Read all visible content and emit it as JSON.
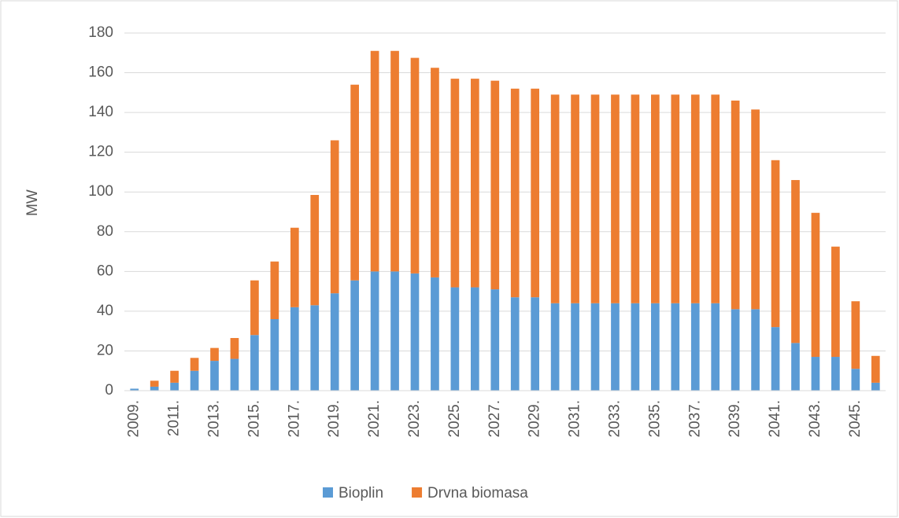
{
  "chart_data": {
    "type": "stacked_bar",
    "y_label": "MW",
    "categories": [
      "2009.",
      null,
      "2011.",
      null,
      "2013.",
      null,
      "2015.",
      null,
      "2017.",
      null,
      "2019.",
      null,
      "2021.",
      null,
      "2023.",
      null,
      "2025.",
      null,
      "2027.",
      null,
      "2029.",
      null,
      "2031.",
      null,
      "2033.",
      null,
      "2035.",
      null,
      "2037.",
      null,
      "2039.",
      null,
      "2041.",
      null,
      "2043.",
      null,
      "2045.",
      null
    ],
    "series": [
      {
        "name": "Bioplin",
        "color": "#5b9bd5",
        "values": [
          1,
          2,
          4,
          10,
          15,
          16,
          28,
          36,
          42,
          43,
          49,
          55.5,
          60,
          60,
          59,
          57,
          52,
          52,
          51,
          47,
          47,
          44,
          44,
          44,
          44,
          44,
          44,
          44,
          44,
          44,
          41,
          41,
          32,
          24,
          17,
          17,
          11,
          4
        ]
      },
      {
        "name": "Drvna biomasa",
        "color": "#ed7d31",
        "values": [
          0,
          3,
          6,
          6.5,
          6.5,
          10.5,
          27.5,
          29,
          40,
          55.5,
          77,
          98.5,
          111,
          111,
          108.5,
          105.5,
          105,
          105,
          105,
          105,
          105,
          105,
          105,
          105,
          105,
          105,
          105,
          105,
          105,
          105,
          105,
          100.5,
          84,
          82,
          72.5,
          55.5,
          34,
          13.5
        ]
      }
    ],
    "ylim": [
      0,
      180
    ],
    "yticks": [
      0,
      20,
      40,
      60,
      80,
      100,
      120,
      140,
      160,
      180
    ],
    "grid": true,
    "legend": "bottom"
  }
}
